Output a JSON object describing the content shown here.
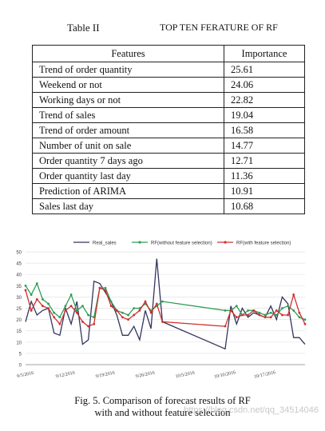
{
  "table": {
    "number": "Table II",
    "title": "TOP TEN FERATURE OF RF",
    "headers": [
      "Features",
      "Importance"
    ],
    "rows": [
      [
        "Trend of order quantity",
        "25.61"
      ],
      [
        "Weekend or not",
        "24.06"
      ],
      [
        "Working days or not",
        "22.82"
      ],
      [
        "Trend of sales",
        "19.04"
      ],
      [
        "Trend of order amount",
        "16.58"
      ],
      [
        "Number of unit on sale",
        "14.77"
      ],
      [
        "Order quantity 7 days ago",
        "12.71"
      ],
      [
        "Order quantity last day",
        "11.36"
      ],
      [
        "Prediction of ARIMA",
        "10.91"
      ],
      [
        "Sales last day",
        "10.68"
      ]
    ]
  },
  "chart_data": {
    "type": "line",
    "title": "",
    "xlabel": "",
    "ylabel": "",
    "ylim": [
      0,
      50
    ],
    "yticks": [
      0,
      5,
      10,
      15,
      20,
      25,
      30,
      35,
      40,
      45,
      50
    ],
    "x_tick_labels": [
      "9/5/2016",
      "9/12/2016",
      "9/19/2016",
      "9/26/2016",
      "10/5/2016",
      "10/10/2016",
      "10/17/2016"
    ],
    "x_tick_positions": [
      0,
      7,
      14,
      21,
      28,
      35,
      42
    ],
    "x": [
      0,
      1,
      2,
      3,
      4,
      5,
      6,
      7,
      8,
      9,
      10,
      11,
      12,
      13,
      14,
      15,
      16,
      17,
      18,
      19,
      20,
      21,
      22,
      23,
      24,
      35,
      36,
      37,
      38,
      39,
      40,
      41,
      42,
      43,
      44,
      45,
      46,
      47,
      48,
      49
    ],
    "series": [
      {
        "name": "Real_sales",
        "color": "#33355e",
        "marker": "none",
        "values": [
          19,
          28,
          22,
          24,
          25,
          14,
          13,
          25,
          18,
          28,
          9,
          11,
          37,
          36,
          32,
          28,
          22,
          13,
          13,
          17,
          11,
          24,
          16,
          47,
          19,
          7,
          26,
          18,
          25,
          21,
          23,
          22,
          21,
          26,
          20,
          30,
          27,
          12,
          12,
          9
        ]
      },
      {
        "name": "RF(without feature selection)",
        "color": "#2e9d56",
        "marker": "circle",
        "values": [
          35,
          31,
          36,
          29,
          27,
          23,
          21,
          26,
          31,
          24,
          26,
          22,
          21,
          34,
          34,
          28,
          24,
          23,
          22,
          25,
          25,
          27,
          24,
          26,
          28,
          24,
          24,
          26,
          22,
          24,
          24,
          23,
          22,
          23,
          22,
          25,
          26,
          24,
          21,
          20
        ]
      },
      {
        "name": "RF(with feature selection)",
        "color": "#d0302f",
        "marker": "circle",
        "values": [
          33,
          24,
          29,
          26,
          25,
          21,
          18,
          24,
          26,
          23,
          19,
          17,
          18,
          34,
          33,
          26,
          24,
          21,
          20,
          22,
          24,
          28,
          23,
          27,
          19,
          17,
          24,
          21,
          22,
          22,
          24,
          22,
          21,
          21,
          24,
          22,
          22,
          31,
          23,
          18
        ]
      }
    ]
  },
  "figure": {
    "caption_line1": "Fig. 5. Comparison of forecast results of RF",
    "caption_line2": "with and without feature selection"
  },
  "watermark": "https://blog.csdn.net/qq_34514046"
}
